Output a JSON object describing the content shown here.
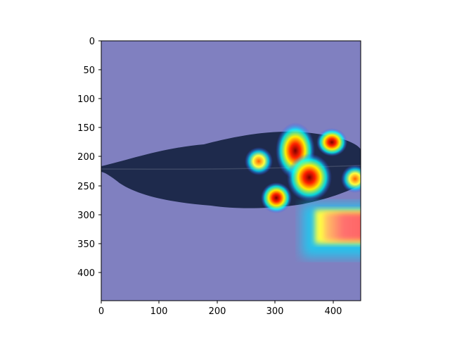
{
  "figure": {
    "image_description": "Dark leaf photographed on a light background with a jet-colormap saliency heatmap overlay",
    "colors": {
      "background_overlay": "#8080c0",
      "leaf": "#1f2a4a",
      "heat_low": "#00ffff",
      "heat_mid": "#ffff00",
      "heat_high": "#ff0000",
      "heat_peak": "#8b0000"
    }
  },
  "axes": {
    "x_ticks": [
      "0",
      "100",
      "200",
      "300",
      "400"
    ],
    "y_ticks": [
      "0",
      "50",
      "100",
      "150",
      "200",
      "250",
      "300",
      "350",
      "400"
    ],
    "x_range": [
      0,
      448
    ],
    "y_range": [
      448,
      0
    ]
  }
}
